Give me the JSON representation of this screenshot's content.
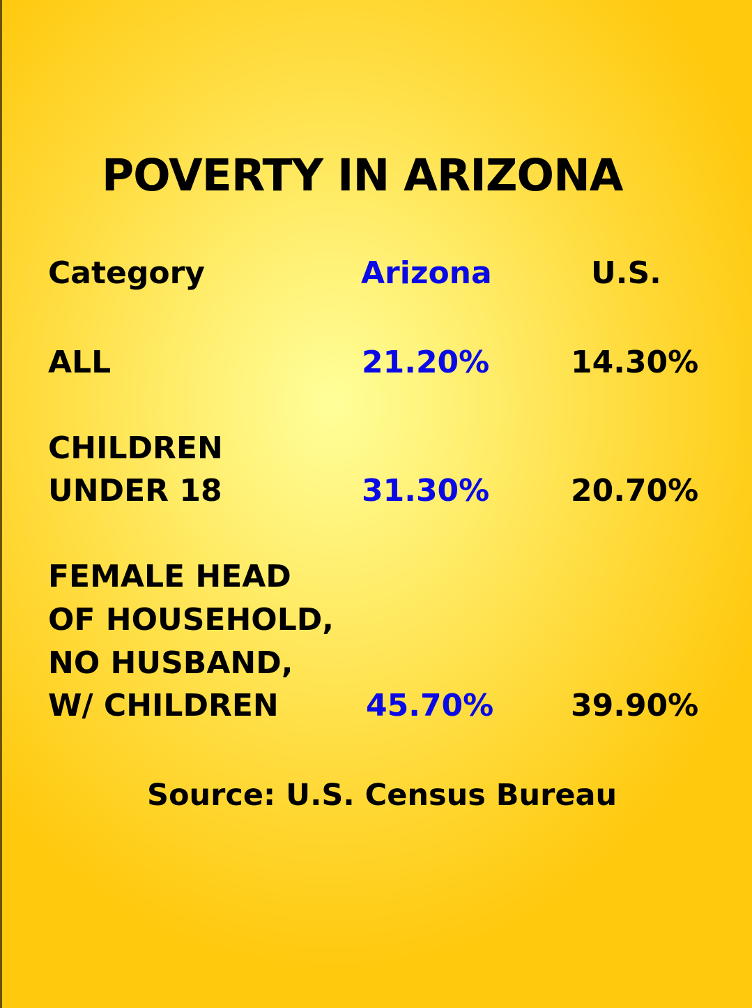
{
  "chart_data": {
    "type": "table",
    "title": "POVERTY IN ARIZONA",
    "columns": [
      "Category",
      "Arizona",
      "U.S."
    ],
    "rows": [
      {
        "category_lines": [
          "ALL"
        ],
        "arizona": "21.20%",
        "us": "14.30%"
      },
      {
        "category_lines": [
          "CHILDREN",
          "UNDER 18"
        ],
        "arizona": "31.30%",
        "us": "20.70%"
      },
      {
        "category_lines": [
          "FEMALE HEAD",
          "OF HOUSEHOLD,",
          "NO HUSBAND,",
          "W/ CHILDREN"
        ],
        "arizona": "45.70%",
        "us": "39.90%"
      }
    ],
    "values_arizona": [
      21.2,
      31.3,
      45.7
    ],
    "values_us": [
      14.3,
      20.7,
      39.9
    ],
    "source": "Source:  U.S. Census Bureau"
  },
  "colors": {
    "arizona_text": "#0a0ae6",
    "text": "#000000",
    "background_center": "#ffff9a",
    "background_edge": "#ffc90e"
  }
}
